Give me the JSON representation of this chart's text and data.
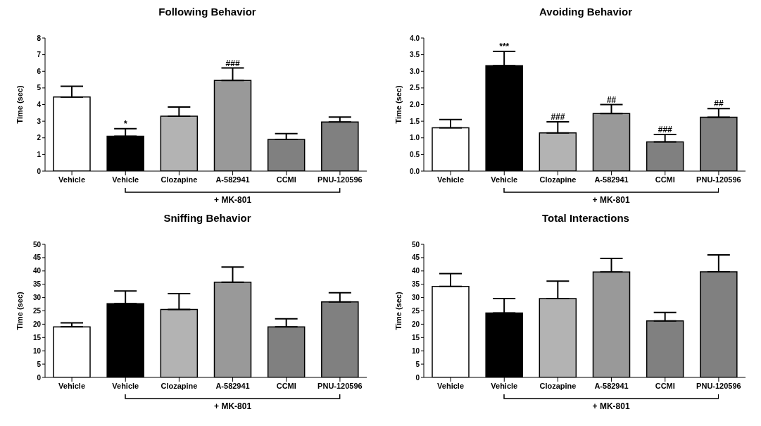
{
  "chart_data": [
    {
      "type": "bar",
      "title": "Following Behavior",
      "ylabel": "Time (sec)",
      "categories": [
        "Vehicle",
        "Vehicle",
        "Clozapine",
        "A-582941",
        "CCMI",
        "PNU-120596"
      ],
      "values": [
        4.45,
        2.1,
        3.3,
        5.45,
        1.9,
        2.95
      ],
      "errors": [
        [
          4.45,
          5.1
        ],
        [
          2.1,
          2.55
        ],
        [
          3.3,
          3.85
        ],
        [
          5.45,
          6.2
        ],
        [
          1.9,
          2.25
        ],
        [
          2.95,
          3.25
        ]
      ],
      "colors": [
        "#ffffff",
        "#000000",
        "#b3b3b3",
        "#999999",
        "#808080",
        "#808080"
      ],
      "ylim": [
        0,
        8
      ],
      "yticks": [
        0,
        1,
        2,
        3,
        4,
        5,
        6,
        7,
        8
      ],
      "grid": false,
      "annotations": [
        {
          "text": "*",
          "y": 2.55
        },
        {
          "text": "###",
          "x": "A-582941",
          "y": 6.2
        },
        "+ MK-801"
      ]
    },
    {
      "type": "bar",
      "title": "Avoiding Behavior",
      "ylabel": "Time (sec)",
      "categories": [
        "Vehicle",
        "Vehicle",
        "Clozapine",
        "A-582941",
        "CCMI",
        "PNU-120596"
      ],
      "values": [
        1.3,
        3.17,
        1.15,
        1.73,
        0.88,
        1.62
      ],
      "errors": [
        [
          1.3,
          1.55
        ],
        [
          3.17,
          3.6
        ],
        [
          1.15,
          1.48
        ],
        [
          1.73,
          2.0
        ],
        [
          0.88,
          1.1
        ],
        [
          1.62,
          1.88
        ]
      ],
      "colors": [
        "#ffffff",
        "#000000",
        "#b3b3b3",
        "#999999",
        "#808080",
        "#808080"
      ],
      "ylim": [
        0,
        4
      ],
      "yticks": [
        {
          "value": 0,
          "label": "0.0"
        },
        {
          "value": 0.5,
          "label": "0.5"
        },
        {
          "value": 1,
          "label": "1.0"
        },
        {
          "value": 1.5,
          "label": "1.5"
        },
        {
          "value": 2,
          "label": "2.0"
        },
        {
          "value": 2.5,
          "label": "2.5"
        },
        {
          "value": 3,
          "label": "3.0"
        },
        {
          "value": 3.5,
          "label": "3.5"
        },
        {
          "value": 4,
          "label": "4.0"
        }
      ],
      "grid": false,
      "annotations": [
        {
          "text": "***",
          "y": 3.6
        },
        {
          "text": "###",
          "x": "Clozapine",
          "y": 1.48
        },
        {
          "text": "##",
          "x": "A-582941",
          "y": 2.0
        },
        {
          "text": "###",
          "x": "CCMI",
          "y": 1.1
        },
        {
          "text": "##",
          "x": "PNU-120596",
          "y": 1.88
        },
        "+ MK-801"
      ]
    },
    {
      "type": "bar",
      "title": "Sniffing Behavior",
      "ylabel": "Time (sec)",
      "categories": [
        "Vehicle",
        "Vehicle",
        "Clozapine",
        "A-582941",
        "CCMI",
        "PNU-120596"
      ],
      "values": [
        19,
        27.7,
        25.5,
        35.8,
        19,
        28.4
      ],
      "errors": [
        [
          19,
          20.5
        ],
        [
          27.7,
          32.5
        ],
        [
          25.5,
          31.5
        ],
        [
          35.8,
          41.5
        ],
        [
          19,
          22
        ],
        [
          28.4,
          31.8
        ]
      ],
      "colors": [
        "#ffffff",
        "#000000",
        "#b3b3b3",
        "#999999",
        "#808080",
        "#808080"
      ],
      "ylim": [
        0,
        50
      ],
      "yticks": [
        0,
        5,
        10,
        15,
        20,
        25,
        30,
        35,
        40,
        45,
        50
      ],
      "grid": false,
      "annotations": [
        "+ MK-801"
      ]
    },
    {
      "type": "bar",
      "title": "Total Interactions",
      "ylabel": "Time (sec)",
      "categories": [
        "Vehicle",
        "Vehicle",
        "Clozapine",
        "A-582941",
        "CCMI",
        "PNU-120596"
      ],
      "values": [
        34.2,
        24.2,
        29.6,
        39.6,
        21.2,
        39.7
      ],
      "errors": [
        [
          34.2,
          39
        ],
        [
          24.2,
          29.6
        ],
        [
          29.6,
          36.2
        ],
        [
          39.6,
          44.7
        ],
        [
          21.2,
          24.4
        ],
        [
          39.7,
          46
        ]
      ],
      "colors": [
        "#ffffff",
        "#000000",
        "#b3b3b3",
        "#999999",
        "#808080",
        "#808080"
      ],
      "ylim": [
        0,
        50
      ],
      "yticks": [
        0,
        5,
        10,
        15,
        20,
        25,
        30,
        35,
        40,
        45,
        50
      ],
      "grid": false,
      "annotations": [
        "+ MK-801"
      ]
    }
  ]
}
